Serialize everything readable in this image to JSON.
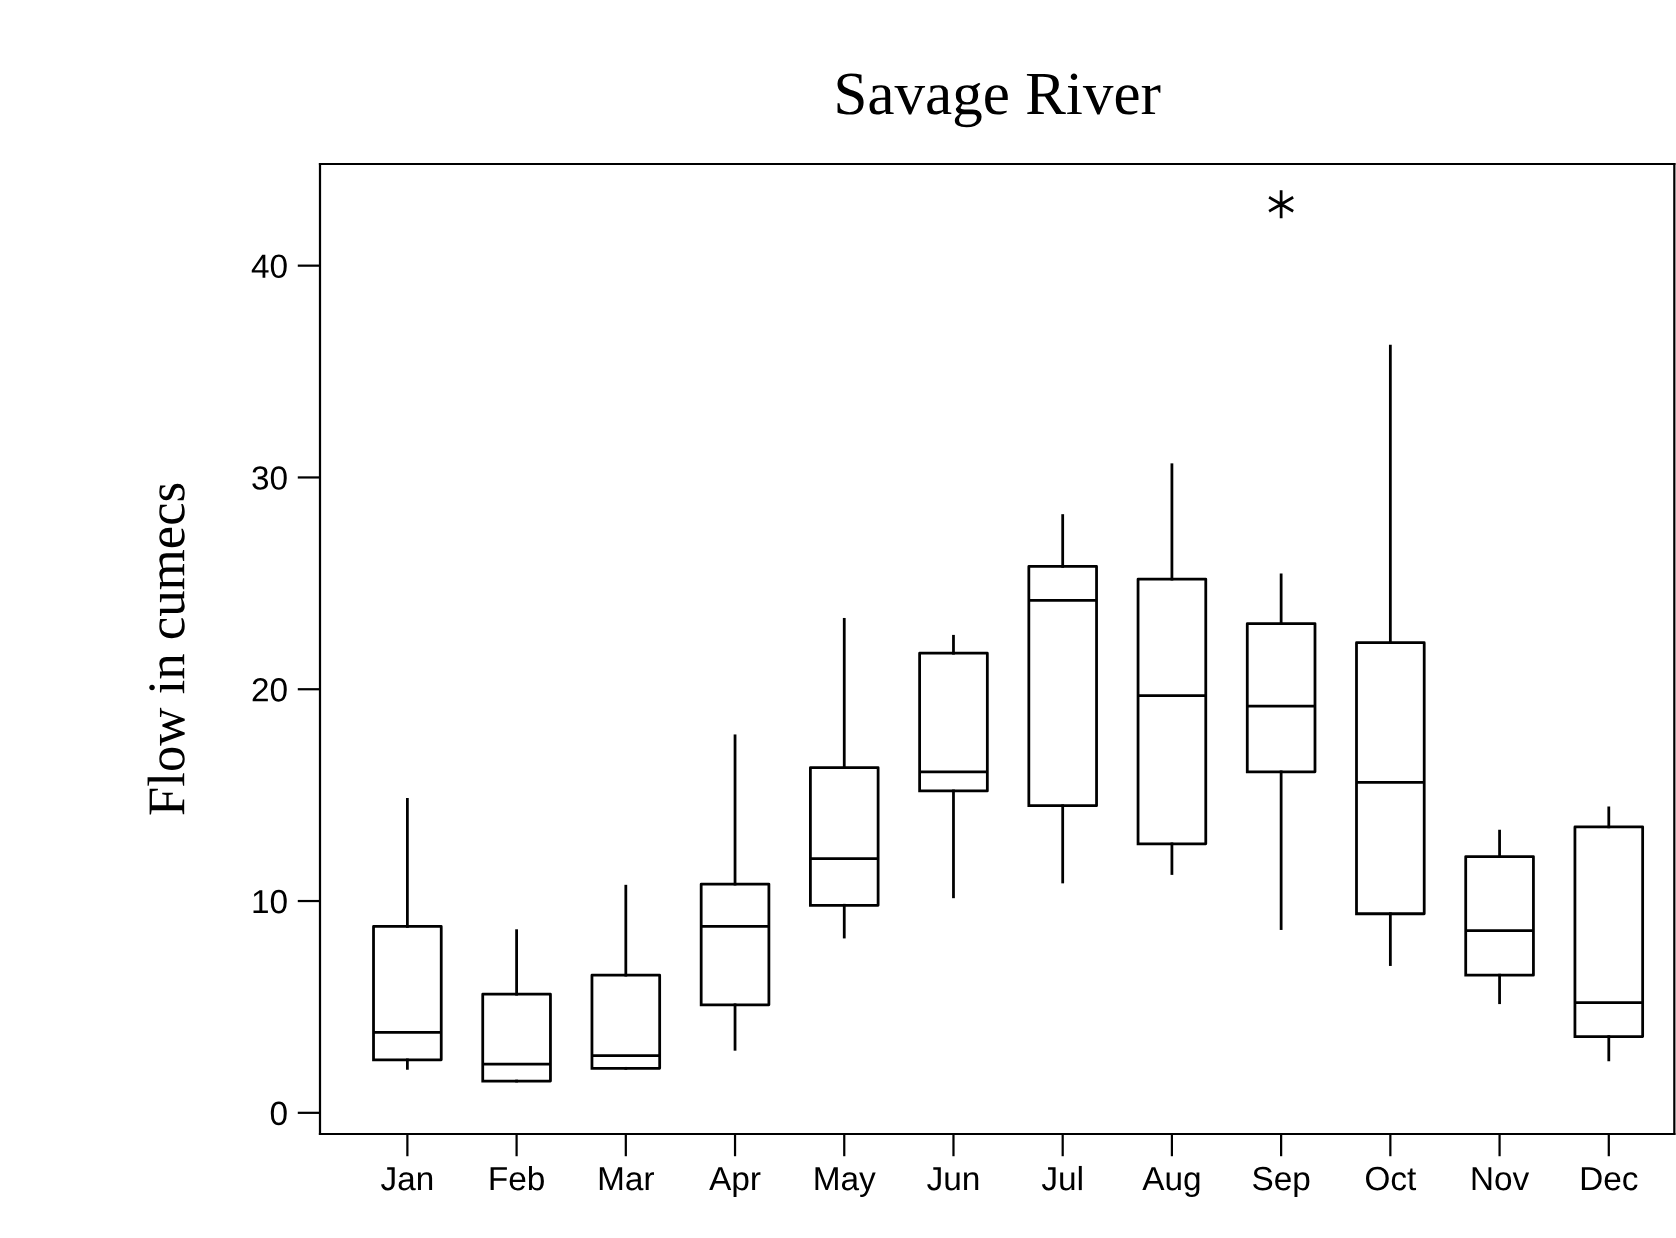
{
  "chart_data": {
    "type": "box",
    "title": "Savage River",
    "ylabel": "Flow in cumecs",
    "categories": [
      "Jan",
      "Feb",
      "Mar",
      "Apr",
      "May",
      "Jun",
      "Jul",
      "Aug",
      "Sep",
      "Oct",
      "Nov",
      "Dec"
    ],
    "boxes": [
      {
        "low": 2.1,
        "q1": 2.5,
        "median": 3.8,
        "q3": 8.8,
        "high": 14.8
      },
      {
        "low": 1.5,
        "q1": 1.5,
        "median": 2.3,
        "q3": 5.6,
        "high": 8.6
      },
      {
        "low": 2.1,
        "q1": 2.1,
        "median": 2.7,
        "q3": 6.5,
        "high": 10.7
      },
      {
        "low": 3.0,
        "q1": 5.1,
        "median": 8.8,
        "q3": 10.8,
        "high": 17.8
      },
      {
        "low": 8.3,
        "q1": 9.8,
        "median": 12.0,
        "q3": 16.3,
        "high": 23.3
      },
      {
        "low": 10.2,
        "q1": 15.2,
        "median": 16.1,
        "q3": 21.7,
        "high": 22.5
      },
      {
        "low": 10.9,
        "q1": 14.5,
        "median": 24.2,
        "q3": 25.8,
        "high": 28.2
      },
      {
        "low": 11.3,
        "q1": 12.7,
        "median": 19.7,
        "q3": 25.2,
        "high": 30.6
      },
      {
        "low": 8.7,
        "q1": 16.1,
        "median": 19.2,
        "q3": 23.1,
        "high": 25.4,
        "outliers": [
          42.9
        ]
      },
      {
        "low": 7.0,
        "q1": 9.4,
        "median": 15.6,
        "q3": 22.2,
        "high": 36.2
      },
      {
        "low": 5.2,
        "q1": 6.5,
        "median": 8.6,
        "q3": 12.1,
        "high": 13.3
      },
      {
        "low": 2.5,
        "q1": 3.6,
        "median": 5.2,
        "q3": 13.5,
        "high": 14.4
      }
    ],
    "ylim": [
      -1,
      44.8
    ],
    "yticks": [
      0,
      10,
      20,
      30,
      40
    ],
    "grid": false,
    "legend": false
  }
}
